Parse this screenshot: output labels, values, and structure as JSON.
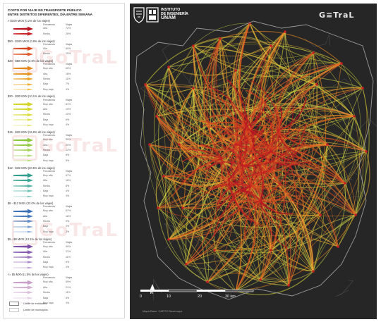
{
  "legend": {
    "title_line1": "COSTO POR VIAJE EN TRANSPORTE PÚBLICO",
    "title_line2": "ENTRE DISTRITOS DIFERENTES, DÍA ENTRE SEMANA",
    "col_frequency": "Frecuencia",
    "col_trips": "Viajes",
    "groups": [
      {
        "title": "> $100 MXN",
        "share": "(0.2% de los viajes)",
        "rows": [
          {
            "label": "Alta",
            "pct": "72%",
            "color": "#b81320",
            "w": 5
          },
          {
            "label": "Media",
            "pct": "28%",
            "color": "#c8242a",
            "w": 4
          }
        ]
      },
      {
        "title": "$50 - $100 MXN",
        "share": "(0.9% de los viajes)",
        "rows": [
          {
            "label": "Alta",
            "pct": "80%",
            "color": "#d7451e",
            "w": 4.5
          },
          {
            "label": "Media",
            "pct": "20%",
            "color": "#e0592a",
            "w": 3.5
          }
        ]
      },
      {
        "title": "$30 - $50 MXN",
        "share": "(3.6% de los viajes)",
        "rows": [
          {
            "label": "Muy alta",
            "pct": "60%",
            "color": "#e5871c",
            "w": 5
          },
          {
            "label": "Alta",
            "pct": "18%",
            "color": "#e8921f",
            "w": 4
          },
          {
            "label": "Media",
            "pct": "11%",
            "color": "#eca127",
            "w": 3
          },
          {
            "label": "Baja",
            "pct": "7%",
            "color": "#efb033",
            "w": 2
          },
          {
            "label": "Muy baja",
            "pct": "4%",
            "color": "#f2c045",
            "w": 1.2
          }
        ]
      },
      {
        "title": "$20 - $30 MXN",
        "share": "(10.1% de los viajes)",
        "rows": [
          {
            "label": "Muy alta",
            "pct": "61%",
            "color": "#d4d42a",
            "w": 5
          },
          {
            "label": "Alta",
            "pct": "19%",
            "color": "#d8d835",
            "w": 4
          },
          {
            "label": "Media",
            "pct": "10%",
            "color": "#dcdc45",
            "w": 3
          },
          {
            "label": "Baja",
            "pct": "6%",
            "color": "#e0e058",
            "w": 2
          },
          {
            "label": "Muy baja",
            "pct": "4%",
            "color": "#e4e46c",
            "w": 1.2
          }
        ]
      },
      {
        "title": "$15 - $20 MXN",
        "share": "(16.9% de los viajes)",
        "rows": [
          {
            "label": "Muy alta",
            "pct": "55%",
            "color": "#8cc63e",
            "w": 5
          },
          {
            "label": "Alta",
            "pct": "20%",
            "color": "#96cb4a",
            "w": 4
          },
          {
            "label": "Media",
            "pct": "12%",
            "color": "#a2d15c",
            "w": 3
          },
          {
            "label": "Baja",
            "pct": "8%",
            "color": "#aed76e",
            "w": 2
          },
          {
            "label": "Muy baja",
            "pct": "5%",
            "color": "#bade82",
            "w": 1.2
          }
        ]
      },
      {
        "title": "$12 - $15 MXN",
        "share": "(20.5% de los viajes)",
        "rows": [
          {
            "label": "Muy alta",
            "pct": "67%",
            "color": "#2e9e8e",
            "w": 5
          },
          {
            "label": "Alta",
            "pct": "18%",
            "color": "#3aa897",
            "w": 4
          },
          {
            "label": "Media",
            "pct": "8%",
            "color": "#52b4a5",
            "w": 3
          },
          {
            "label": "Baja",
            "pct": "4%",
            "color": "#6ac0b3",
            "w": 2
          },
          {
            "label": "Muy baja",
            "pct": "3%",
            "color": "#82ccc1",
            "w": 1.2
          }
        ]
      },
      {
        "title": "$8 - $12 MXN",
        "share": "(33.0% de los viajes)",
        "rows": [
          {
            "label": "Muy alta",
            "pct": "67%",
            "color": "#3b6fb6",
            "w": 5
          },
          {
            "label": "Alta",
            "pct": "18%",
            "color": "#4a7cbf",
            "w": 4
          },
          {
            "label": "Media",
            "pct": "9%",
            "color": "#5f8dc8",
            "w": 3
          },
          {
            "label": "Baja",
            "pct": "4%",
            "color": "#769ed2",
            "w": 2
          },
          {
            "label": "Muy baja",
            "pct": "2%",
            "color": "#8eafdb",
            "w": 1.2
          }
        ]
      },
      {
        "title": "$5 - $8 MXN",
        "share": "(13.1% de los viajes)",
        "rows": [
          {
            "label": "Muy alta",
            "pct": "59%",
            "color": "#7b4fa8",
            "w": 5
          },
          {
            "label": "Alta",
            "pct": "21%",
            "color": "#8a5fb3",
            "w": 4
          },
          {
            "label": "Media",
            "pct": "11%",
            "color": "#9b74be",
            "w": 3
          },
          {
            "label": "Baja",
            "pct": "6%",
            "color": "#ac89c9",
            "w": 2
          },
          {
            "label": "Muy baja",
            "pct": "3%",
            "color": "#bd9fd4",
            "w": 1.2
          }
        ]
      },
      {
        "title": "<= $5 MXN",
        "share": "(1.5% de los viajes)",
        "rows": [
          {
            "label": "Muy alta",
            "pct": "59%",
            "color": "#c9a0c9",
            "w": 5
          },
          {
            "label": "Alta",
            "pct": "21%",
            "color": "#d2b0d2",
            "w": 4
          },
          {
            "label": "Media",
            "pct": "11%",
            "color": "#dbc0db",
            "w": 3
          },
          {
            "label": "Baja",
            "pct": "6%",
            "color": "#e4d0e4",
            "w": 2
          },
          {
            "label": "Muy baja",
            "pct": "3%",
            "color": "#ede0ed",
            "w": 1.2
          }
        ]
      }
    ],
    "limit_states": "Límite de entidades",
    "limit_municipalities": "Límite de municipios"
  },
  "map": {
    "institute_line1": "INSTITUTO",
    "institute_line2": "DE INGENIERÍA",
    "institute_line3": "UNAM",
    "brand": "G≡TraL",
    "scale_ticks": [
      "0",
      "10",
      "20",
      "30 km"
    ],
    "north_label": "N",
    "attribution": "Mapa Base: CARTO Basemaps",
    "colors": {
      "background": "#262626",
      "outline": "#9a9a9a",
      "flow_high": "#c41f24",
      "flow_mid": "#f07f1e",
      "flow_low": "#e8e84a"
    }
  }
}
